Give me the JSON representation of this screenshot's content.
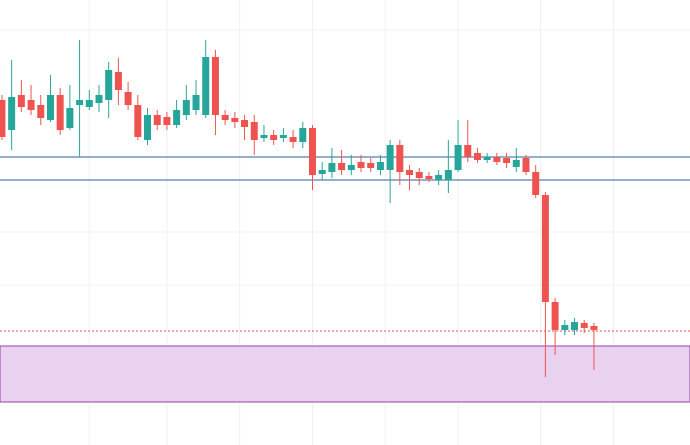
{
  "chart_data": {
    "type": "candlestick",
    "x": [
      0,
      1,
      2,
      3,
      4,
      5,
      6,
      7,
      8,
      9,
      10,
      11,
      12,
      13,
      14,
      15,
      16,
      17,
      18,
      19,
      20,
      21,
      22,
      23,
      24,
      25,
      26,
      27,
      28,
      29,
      30,
      31,
      32,
      33,
      34,
      35,
      36,
      37,
      38,
      39,
      40,
      41,
      42,
      43,
      44,
      45,
      46,
      47,
      48,
      49,
      50,
      51,
      52,
      53,
      54,
      55,
      56,
      57,
      58,
      59,
      60,
      61
    ],
    "open": [
      345,
      315,
      350,
      345,
      340,
      325,
      350,
      317,
      340,
      338,
      342,
      345,
      373,
      353,
      340,
      305,
      330,
      328,
      320,
      330,
      335,
      330,
      388,
      330,
      327,
      325,
      323,
      307,
      310,
      307,
      308,
      303,
      317,
      271,
      273,
      282,
      275,
      283,
      282,
      275,
      275,
      300,
      275,
      273,
      269,
      265,
      265,
      275,
      300,
      292,
      285,
      288,
      287,
      278,
      287,
      273,
      250,
      143,
      115,
      115,
      122,
      119
    ],
    "high": [
      350,
      385,
      365,
      360,
      350,
      370,
      357,
      360,
      405,
      355,
      360,
      383,
      387,
      363,
      350,
      337,
      335,
      333,
      345,
      360,
      365,
      405,
      395,
      335,
      333,
      330,
      330,
      320,
      315,
      317,
      315,
      323,
      320,
      283,
      297,
      295,
      290,
      290,
      287,
      290,
      305,
      305,
      280,
      277,
      273,
      275,
      305,
      325,
      325,
      297,
      292,
      292,
      292,
      297,
      290,
      280,
      253,
      147,
      125,
      127,
      125,
      122
    ],
    "low": [
      305,
      295,
      333,
      330,
      320,
      323,
      310,
      315,
      288,
      335,
      333,
      327,
      340,
      335,
      305,
      300,
      315,
      315,
      317,
      325,
      330,
      327,
      310,
      320,
      317,
      305,
      290,
      303,
      300,
      303,
      297,
      297,
      255,
      265,
      267,
      270,
      270,
      273,
      273,
      270,
      242,
      260,
      255,
      260,
      263,
      260,
      252,
      273,
      283,
      282,
      282,
      280,
      277,
      273,
      270,
      247,
      68,
      90,
      110,
      110,
      112,
      75
    ],
    "close": [
      308,
      348,
      338,
      335,
      327,
      350,
      315,
      337,
      345,
      345,
      350,
      375,
      355,
      340,
      308,
      330,
      320,
      320,
      335,
      345,
      350,
      388,
      330,
      325,
      323,
      318,
      305,
      310,
      305,
      310,
      303,
      317,
      270,
      275,
      282,
      275,
      280,
      277,
      277,
      283,
      300,
      273,
      270,
      267,
      266,
      270,
      275,
      300,
      288,
      285,
      288,
      283,
      282,
      285,
      273,
      250,
      143,
      115,
      120,
      123,
      117,
      115
    ],
    "up_color": "#26a69a",
    "down_color": "#ef5350",
    "xlim": [
      -0.2,
      70.9
    ],
    "ylim": [
      0,
      445
    ],
    "xticks": [
      9,
      17,
      24.5,
      32,
      39.5,
      47,
      55.5,
      63
    ],
    "yticks": [
      160,
      213,
      415
    ],
    "grid": true,
    "levels": [
      {
        "value": 288,
        "color": "#2f5f98",
        "style": "solid"
      },
      {
        "value": 265,
        "color": "#2f5f98",
        "style": "solid"
      },
      {
        "value": 114,
        "color": "#e05050",
        "style": "dotted"
      }
    ],
    "zone": {
      "from": 43,
      "to": 99,
      "color": "#e8d2ef",
      "border": "#9c3fa8"
    }
  }
}
